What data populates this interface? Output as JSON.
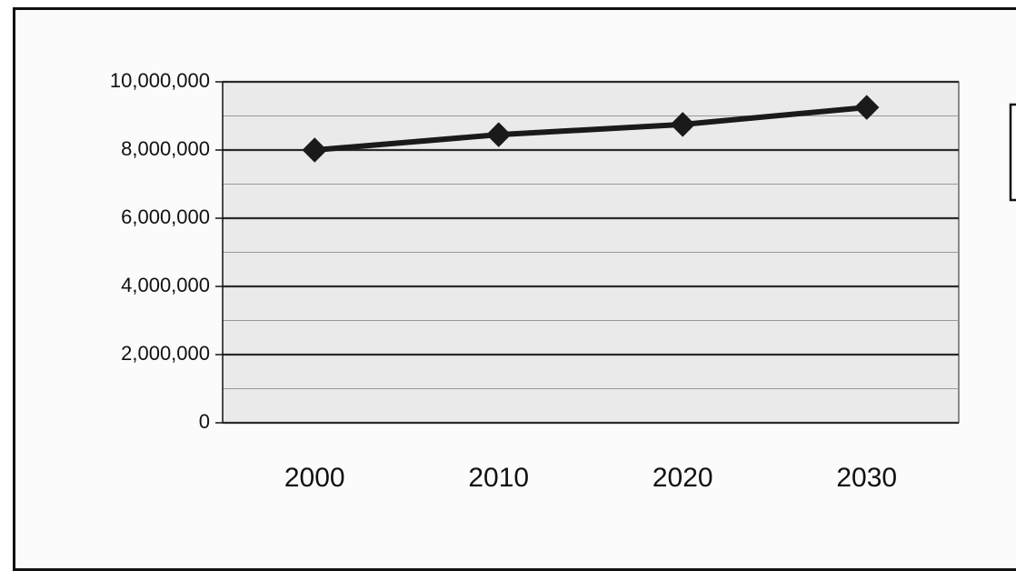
{
  "chart_data": {
    "type": "line",
    "categories": [
      "2000",
      "2010",
      "2020",
      "2030"
    ],
    "series": [
      {
        "values": [
          8000000,
          8450000,
          8750000,
          9250000
        ],
        "color": "#1a1a1a",
        "marker": "diamond"
      }
    ],
    "ylim": [
      0,
      10000000
    ],
    "y_ticks": [
      0,
      2000000,
      4000000,
      6000000,
      8000000,
      10000000
    ],
    "y_tick_labels": [
      "0",
      "2,000,000",
      "4,000,000",
      "6,000,000",
      "8,000,000",
      "10,000,000"
    ],
    "grid": true,
    "legend_position": "right",
    "plot_background": "#eaeaea"
  }
}
